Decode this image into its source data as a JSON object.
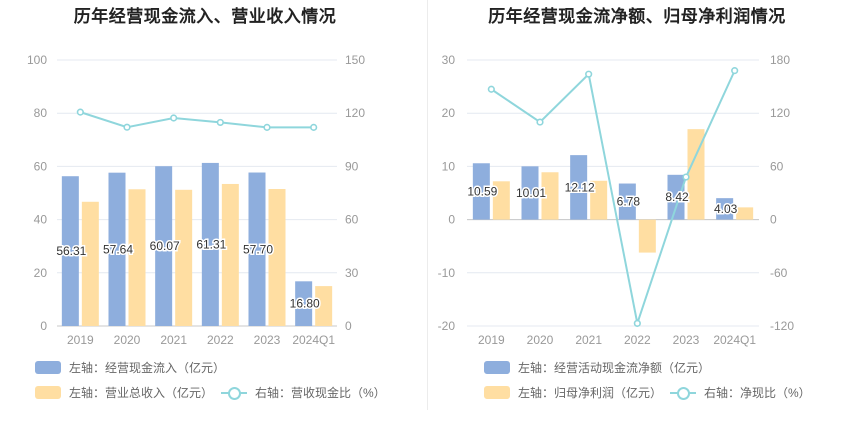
{
  "colors": {
    "bar1": "#8eaedd",
    "bar2": "#ffdea2",
    "line": "#8fd6dc",
    "grid": "#e4e9f0",
    "axis": "#999999"
  },
  "chart_data": [
    {
      "type": "bar",
      "title": "历年经营现金流入、营业收入情况",
      "categories": [
        "2019",
        "2020",
        "2021",
        "2022",
        "2023",
        "2024Q1"
      ],
      "left_axis": {
        "ylim": [
          0,
          100
        ],
        "ticks": [
          "0",
          "20",
          "40",
          "60",
          "80",
          "100"
        ]
      },
      "right_axis": {
        "ylim": [
          0,
          150
        ],
        "ticks": [
          "0",
          "30",
          "60",
          "90",
          "120",
          "150"
        ]
      },
      "series": [
        {
          "name": "左轴：经营现金流入（亿元）",
          "axis": "left",
          "kind": "bar",
          "values": [
            56.31,
            57.64,
            60.07,
            61.31,
            57.7,
            16.8
          ],
          "labels": [
            "56.31",
            "57.64",
            "60.07",
            "61.31",
            "57.70",
            "16.80"
          ]
        },
        {
          "name": "左轴：营业总收入（亿元）",
          "axis": "left",
          "kind": "bar",
          "values": [
            46.7,
            51.4,
            51.2,
            53.4,
            51.5,
            15.0
          ]
        },
        {
          "name": "右轴：营收现金比（%）",
          "axis": "right",
          "kind": "line",
          "values": [
            120.6,
            112.1,
            117.3,
            114.8,
            112.0,
            112.0
          ]
        }
      ]
    },
    {
      "type": "bar",
      "title": "历年经营现金流净额、归母净利润情况",
      "categories": [
        "2019",
        "2020",
        "2021",
        "2022",
        "2023",
        "2024Q1"
      ],
      "left_axis": {
        "ylim": [
          -20,
          30
        ],
        "ticks": [
          "-20",
          "-10",
          "0",
          "10",
          "20",
          "30"
        ]
      },
      "right_axis": {
        "ylim": [
          -120,
          180
        ],
        "ticks": [
          "-120",
          "-60",
          "0",
          "60",
          "120",
          "180"
        ]
      },
      "series": [
        {
          "name": "左轴：经营活动现金流净额（亿元）",
          "axis": "left",
          "kind": "bar",
          "values": [
            10.59,
            10.01,
            12.12,
            6.78,
            8.42,
            4.03
          ],
          "labels": [
            "10.59",
            "10.01",
            "12.12",
            "6.78",
            "8.42",
            "4.03"
          ]
        },
        {
          "name": "左轴：归母净利润（亿元）",
          "axis": "left",
          "kind": "bar",
          "values": [
            7.2,
            8.9,
            7.3,
            -6.2,
            17.0,
            2.3
          ]
        },
        {
          "name": "右轴：净现比（%）",
          "axis": "right",
          "kind": "line",
          "values": [
            147,
            110,
            164,
            -117,
            48,
            168
          ]
        }
      ]
    }
  ]
}
